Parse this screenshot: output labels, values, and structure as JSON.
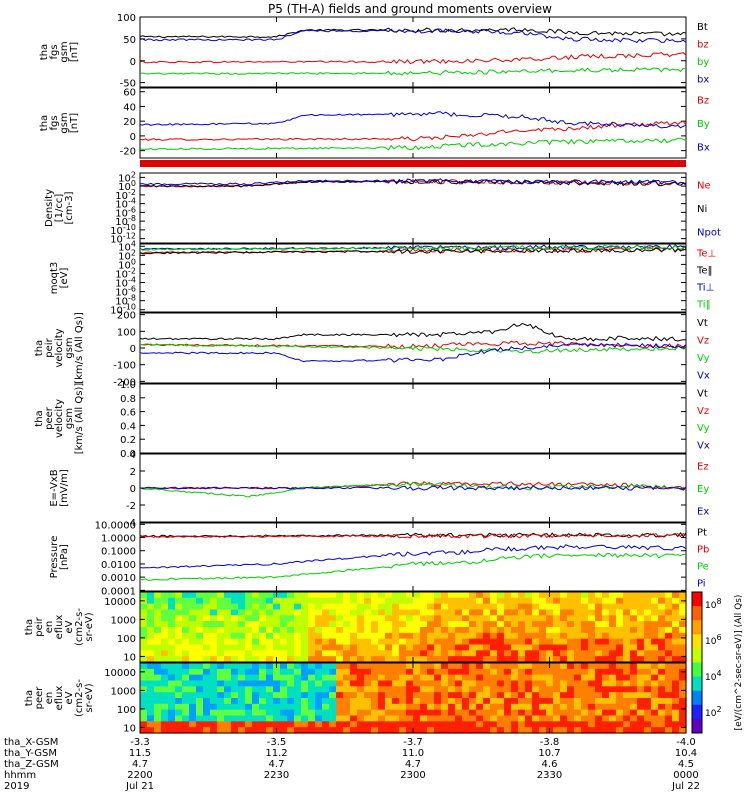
{
  "title": "P5 (TH-A) fields and ground moments overview",
  "colors": {
    "black": "#000000",
    "red": "#e00000",
    "green": "#00cc00",
    "blue": "#0000cc"
  },
  "chart_data": [
    {
      "type": "line",
      "ylabel": [
        "tha",
        "fgs",
        "gsm",
        "[nT]"
      ],
      "ylim": [
        -60,
        100
      ],
      "ticks": [
        -50,
        0,
        50,
        100
      ],
      "legend": [
        {
          "label": "Bt",
          "color": "black"
        },
        {
          "label": "bz",
          "color": "red"
        },
        {
          "label": "by",
          "color": "green"
        },
        {
          "label": "bx",
          "color": "blue"
        }
      ],
      "series": [
        {
          "name": "Bt",
          "color": "black",
          "x": [
            0,
            0.25,
            0.3,
            0.6,
            0.7,
            0.78,
            0.9,
            1.0
          ],
          "y": [
            55,
            55,
            70,
            70,
            72,
            65,
            62,
            60
          ]
        },
        {
          "name": "bz",
          "color": "red",
          "x": [
            0,
            0.5,
            0.7,
            0.78,
            0.9,
            1.0
          ],
          "y": [
            -3,
            -2,
            2,
            8,
            12,
            15
          ]
        },
        {
          "name": "by",
          "color": "green",
          "x": [
            0,
            0.5,
            0.7,
            0.78,
            1.0
          ],
          "y": [
            -30,
            -28,
            -25,
            -22,
            -20
          ]
        },
        {
          "name": "bx",
          "color": "blue",
          "x": [
            0,
            0.25,
            0.3,
            0.6,
            0.7,
            0.78,
            0.9,
            1.0
          ],
          "y": [
            48,
            48,
            68,
            68,
            65,
            50,
            47,
            45
          ]
        }
      ]
    },
    {
      "type": "line",
      "ylabel": [
        "tha",
        "fgs",
        "gsm",
        "[nT]"
      ],
      "ylim": [
        -30,
        65
      ],
      "ticks": [
        -20,
        0,
        20,
        40,
        60
      ],
      "legend": [
        {
          "label": "Bz",
          "color": "red"
        },
        {
          "label": "By",
          "color": "green"
        },
        {
          "label": "Bx",
          "color": "blue"
        }
      ],
      "series": [
        {
          "name": "Bz",
          "color": "red",
          "x": [
            0,
            0.5,
            0.6,
            0.7,
            0.78,
            0.9,
            1.0
          ],
          "y": [
            -5,
            -4,
            0,
            8,
            10,
            15,
            18
          ]
        },
        {
          "name": "By",
          "color": "green",
          "x": [
            0,
            0.5,
            0.6,
            0.7,
            0.78,
            1.0
          ],
          "y": [
            -18,
            -16,
            -12,
            -10,
            -8,
            -6
          ]
        },
        {
          "name": "Bx",
          "color": "blue",
          "x": [
            0,
            0.25,
            0.3,
            0.55,
            0.7,
            0.78,
            0.9,
            1.0
          ],
          "y": [
            15,
            17,
            28,
            30,
            26,
            18,
            15,
            12
          ]
        }
      ]
    },
    {
      "type": "line",
      "ylabel": [
        "Density",
        "[1/cc]",
        "[cm-3]"
      ],
      "ylim": [
        -13,
        3
      ],
      "ticks": [
        "10^2",
        "10^0",
        "10^-2",
        "10^-4",
        "10^-6",
        "10^-8",
        "10^-10",
        "10^-12"
      ],
      "tick_values": [
        2,
        0,
        -2,
        -4,
        -6,
        -8,
        -10,
        -12
      ],
      "legend": [
        {
          "label": "Ne",
          "color": "red"
        },
        {
          "label": "Ni",
          "color": "black"
        },
        {
          "label": "Npot",
          "color": "blue"
        }
      ],
      "series": [
        {
          "name": "Ne",
          "color": "red",
          "x": [
            0,
            0.2,
            0.3,
            0.6,
            1.0
          ],
          "y": [
            0,
            0,
            1,
            1,
            0.5
          ]
        },
        {
          "name": "Ni",
          "color": "black",
          "x": [
            0,
            0.2,
            0.3,
            0.6,
            1.0
          ],
          "y": [
            0,
            0,
            1,
            1,
            0.5
          ]
        },
        {
          "name": "Npot",
          "color": "blue",
          "x": [
            0,
            0.2,
            0.3,
            0.6,
            1.0
          ],
          "y": [
            0.5,
            0.5,
            1.2,
            1.2,
            0.8
          ]
        }
      ]
    },
    {
      "type": "line",
      "ylabel": [
        "moqt3",
        "[eV]"
      ],
      "ylim": [
        -10.5,
        4.5
      ],
      "ticks": [
        "10^4",
        "10^2",
        "10^0",
        "10^-2",
        "10^-4",
        "10^-6",
        "10^-8",
        "10^-10"
      ],
      "tick_values": [
        4,
        2,
        0,
        -2,
        -4,
        -6,
        -8,
        -10
      ],
      "legend": [
        {
          "label": "Te⊥",
          "color": "red"
        },
        {
          "label": "Te‖",
          "color": "black"
        },
        {
          "label": "Ti⊥",
          "color": "blue"
        },
        {
          "label": "Ti‖",
          "color": "green"
        }
      ],
      "series": [
        {
          "name": "Te⊥",
          "color": "red",
          "x": [
            0,
            0.5,
            1.0
          ],
          "y": [
            2.6,
            3.0,
            3.3
          ]
        },
        {
          "name": "Te‖",
          "color": "black",
          "x": [
            0,
            0.5,
            1.0
          ],
          "y": [
            2.5,
            2.9,
            3.2
          ]
        },
        {
          "name": "Ti⊥",
          "color": "blue",
          "x": [
            0,
            0.5,
            1.0
          ],
          "y": [
            3.4,
            3.7,
            3.9
          ]
        },
        {
          "name": "Ti‖",
          "color": "green",
          "x": [
            0,
            0.5,
            1.0
          ],
          "y": [
            3.3,
            3.6,
            3.8
          ]
        }
      ]
    },
    {
      "type": "line",
      "ylabel": [
        "tha",
        "peir",
        "velocity",
        "gsm",
        "[km/s (All Qs)]"
      ],
      "ylim": [
        -210,
        210
      ],
      "ticks": [
        200,
        100,
        0,
        -100,
        -200
      ],
      "legend": [
        {
          "label": "Vt",
          "color": "black"
        },
        {
          "label": "Vz",
          "color": "red"
        },
        {
          "label": "Vy",
          "color": "green"
        },
        {
          "label": "Vx",
          "color": "blue"
        }
      ],
      "series": [
        {
          "name": "Vt",
          "color": "black",
          "x": [
            0,
            0.25,
            0.3,
            0.55,
            0.65,
            0.7,
            0.78,
            0.9,
            1.0
          ],
          "y": [
            55,
            55,
            80,
            80,
            100,
            150,
            50,
            60,
            50
          ]
        },
        {
          "name": "Vz",
          "color": "red",
          "x": [
            0,
            0.5,
            0.7,
            1.0
          ],
          "y": [
            20,
            10,
            30,
            10
          ]
        },
        {
          "name": "Vy",
          "color": "green",
          "x": [
            0,
            0.5,
            0.7,
            1.0
          ],
          "y": [
            20,
            0,
            -20,
            0
          ]
        },
        {
          "name": "Vx",
          "color": "blue",
          "x": [
            0,
            0.25,
            0.3,
            0.55,
            0.65,
            0.78,
            1.0
          ],
          "y": [
            -30,
            -30,
            -80,
            -70,
            -10,
            20,
            10
          ]
        }
      ]
    },
    {
      "type": "line",
      "ylabel": [
        "tha",
        "peer",
        "velocity",
        "gsm",
        "[km/s (All Qs)]"
      ],
      "ylim": [
        0,
        1
      ],
      "ticks": [
        1.0,
        0.8,
        0.6,
        0.4,
        0.2,
        0.0
      ],
      "tick_labels": [
        "1.0",
        "0.8",
        "0.6",
        "0.4",
        "0.2",
        "0.0"
      ],
      "legend": [
        {
          "label": "Vt",
          "color": "black"
        },
        {
          "label": "Vz",
          "color": "red"
        },
        {
          "label": "Vy",
          "color": "green"
        },
        {
          "label": "Vx",
          "color": "blue"
        }
      ],
      "series": []
    },
    {
      "type": "line",
      "ylabel": [
        "E=-VxB",
        "[mV/m]"
      ],
      "ylim": [
        -4,
        4
      ],
      "ticks": [
        4,
        2,
        0,
        -2,
        -4
      ],
      "legend": [
        {
          "label": "Ez",
          "color": "red"
        },
        {
          "label": "Ey",
          "color": "green"
        },
        {
          "label": "Ex",
          "color": "blue"
        }
      ],
      "series": [
        {
          "name": "Ez",
          "color": "red",
          "x": [
            0,
            0.2,
            0.3,
            0.5,
            0.7,
            0.9,
            1.0
          ],
          "y": [
            0,
            0,
            0,
            0.5,
            0.5,
            0.3,
            0
          ]
        },
        {
          "name": "Ey",
          "color": "green",
          "x": [
            0,
            0.2,
            0.3,
            0.5,
            0.7,
            0.9,
            1.0
          ],
          "y": [
            0,
            -1,
            0,
            0.5,
            0,
            0.2,
            0
          ]
        },
        {
          "name": "Ex",
          "color": "blue",
          "x": [
            0,
            0.2,
            0.3,
            0.5,
            0.7,
            0.9,
            1.0
          ],
          "y": [
            0,
            0,
            0,
            0,
            0,
            0,
            0
          ]
        }
      ]
    },
    {
      "type": "line",
      "ylabel": [
        "Pressure",
        "[nPa]"
      ],
      "ylim": [
        -4.05,
        1.1
      ],
      "ticks": [
        "10.0000",
        "1.0000",
        "0.1000",
        "0.0100",
        "0.0010",
        "0.0001"
      ],
      "tick_values": [
        1,
        0,
        -1,
        -2,
        -3,
        -4
      ],
      "legend": [
        {
          "label": "Pt",
          "color": "black"
        },
        {
          "label": "Pb",
          "color": "red"
        },
        {
          "label": "Pe",
          "color": "green"
        },
        {
          "label": "Pi",
          "color": "blue"
        }
      ],
      "series": [
        {
          "name": "Pt",
          "color": "black",
          "x": [
            0,
            0.3,
            1.0
          ],
          "y": [
            0.1,
            0.15,
            0.2
          ]
        },
        {
          "name": "Pb",
          "color": "red",
          "x": [
            0,
            0.3,
            1.0
          ],
          "y": [
            0.05,
            0.1,
            0.15
          ]
        },
        {
          "name": "Pe",
          "color": "green",
          "x": [
            0,
            0.25,
            0.3,
            0.5,
            0.6,
            0.65,
            0.78,
            0.9,
            1.0
          ],
          "y": [
            -3.2,
            -3.0,
            -2.8,
            -2.0,
            -1.9,
            -1.6,
            -1.3,
            -1.35,
            -1.4
          ]
        },
        {
          "name": "Pi",
          "color": "blue",
          "x": [
            0,
            0.25,
            0.3,
            0.5,
            0.6,
            0.65,
            0.78,
            0.9,
            1.0
          ],
          "y": [
            -2.3,
            -2.0,
            -1.8,
            -1.2,
            -1.1,
            -0.9,
            -0.7,
            -0.75,
            -0.8
          ]
        }
      ]
    },
    {
      "type": "heatmap",
      "ylabel": [
        "tha",
        "peir",
        "en",
        "eflux",
        "eV",
        "(cm2-s-",
        "sr-eV)"
      ],
      "yscale": "log",
      "ylim": [
        5,
        30000
      ],
      "ticks": [
        10000,
        1000,
        100,
        10
      ],
      "tick_labels": [
        "10000",
        "1000",
        "100",
        "10"
      ]
    },
    {
      "type": "heatmap",
      "ylabel": [
        "tha",
        "peer",
        "en",
        "eflux",
        "eV",
        "(cm2-s-",
        "sr-eV)"
      ],
      "yscale": "log",
      "ylim": [
        5,
        30000
      ],
      "ticks": [
        10000,
        1000,
        100,
        10
      ],
      "tick_labels": [
        "10000",
        "1000",
        "100",
        "10"
      ]
    }
  ],
  "colorbar": {
    "labels": [
      "10^8",
      "10^6",
      "10^4",
      "10^2"
    ],
    "unit": "[eV/(cm^2-sec-sr-eV)] (All Qs)"
  },
  "xaxis": {
    "rows": [
      {
        "label": "tha_X-GSM",
        "values": [
          "-3.3",
          "-3.5",
          "-3.7",
          "-3.8",
          "-4.0"
        ]
      },
      {
        "label": "tha_Y-GSM",
        "values": [
          "11.5",
          "11.2",
          "11.0",
          "10.7",
          "10.4"
        ]
      },
      {
        "label": "tha_Z-GSM",
        "values": [
          "4.7",
          "4.7",
          "4.7",
          "4.6",
          "4.5"
        ]
      },
      {
        "label": "hhmm",
        "values": [
          "2200",
          "2230",
          "2300",
          "2330",
          "0000"
        ]
      },
      {
        "label": "2019",
        "values": [
          "Jul 21",
          "",
          "",
          "",
          "Jul 22"
        ]
      }
    ]
  }
}
